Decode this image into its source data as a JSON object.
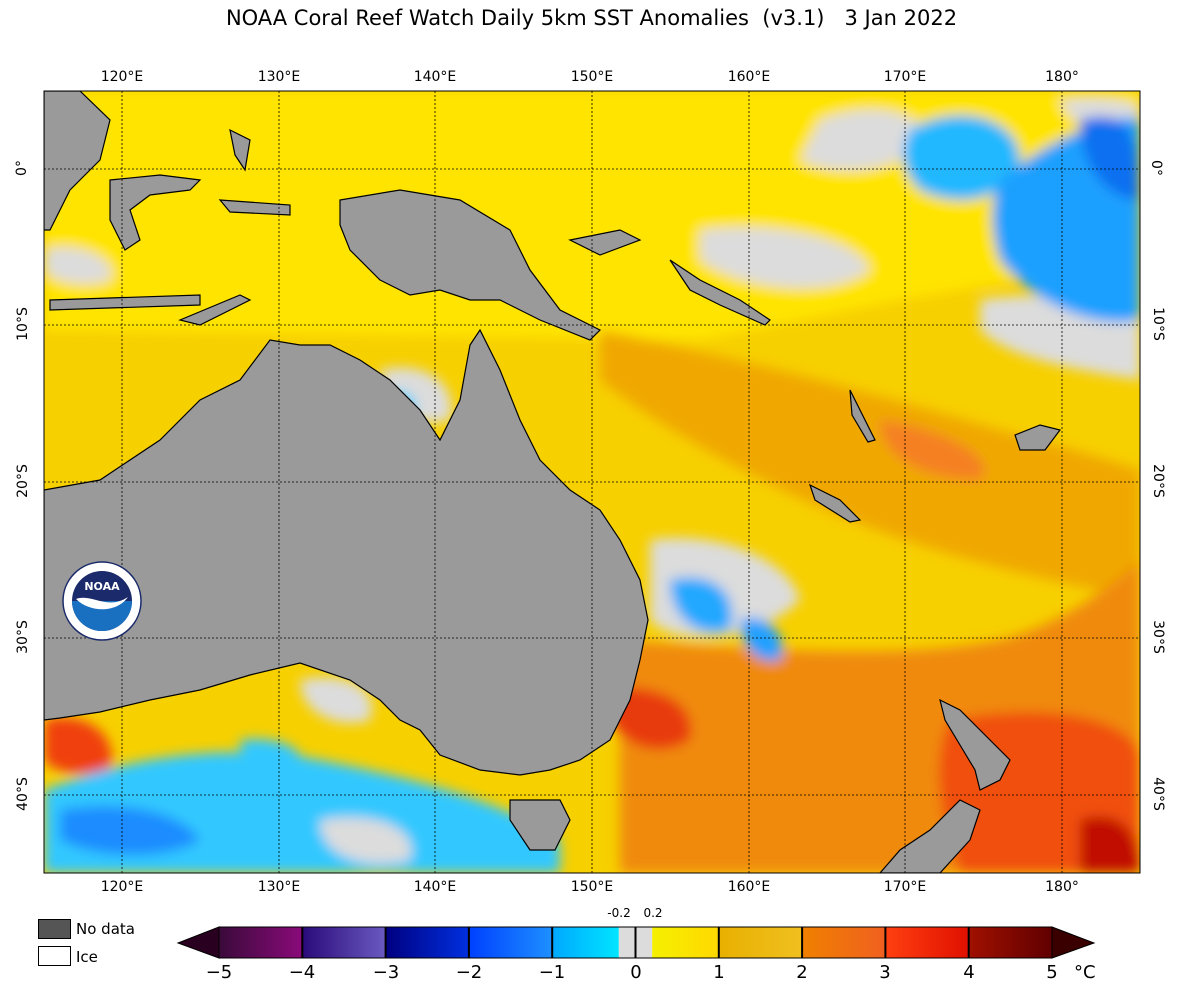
{
  "title": "NOAA Coral Reef Watch Daily 5km SST Anomalies  (v3.1)   3 Jan 2022",
  "map": {
    "lon_ticks": [
      "120°E",
      "130°E",
      "140°E",
      "150°E",
      "160°E",
      "170°E",
      "180°"
    ],
    "lat_ticks_left": [
      "0°",
      "10°S",
      "20°S",
      "30°S",
      "40°S"
    ],
    "lat_ticks_right": [
      "0°",
      "10°S",
      "20°S",
      "30°S",
      "40°S"
    ],
    "lon_range": [
      115,
      185
    ],
    "lat_range": [
      -45,
      5
    ],
    "gridlines": true,
    "colors": {
      "land": "#9a9a9a",
      "no_data_ocean": "#dcdcdc",
      "coastline": "#000000"
    }
  },
  "legend": {
    "items": [
      {
        "label": "No data",
        "color": "#555555"
      },
      {
        "label": "Ice",
        "color": "#ffffff"
      }
    ]
  },
  "colorbar": {
    "tick_labels": [
      "−5",
      "−4",
      "−3",
      "−2",
      "−1",
      "0",
      "1",
      "2",
      "3",
      "4",
      "5"
    ],
    "small_labels": [
      "-0.2",
      "0.2"
    ],
    "unit": "°C",
    "range": [
      -5,
      5
    ],
    "segments": [
      {
        "from": -5,
        "to": -4,
        "c1": "#3a0a3a",
        "c2": "#8a0a7a"
      },
      {
        "from": -4,
        "to": -3,
        "c1": "#2a0a7a",
        "c2": "#6a5ac0"
      },
      {
        "from": -3,
        "to": -2,
        "c1": "#000080",
        "c2": "#0030e0"
      },
      {
        "from": -2,
        "to": -1,
        "c1": "#0040ff",
        "c2": "#1e90ff"
      },
      {
        "from": -1,
        "to": -0.2,
        "c1": "#00a8ff",
        "c2": "#00e5ff"
      },
      {
        "from": -0.2,
        "to": 0.2,
        "c1": "#dcdcdc",
        "c2": "#dcdcdc"
      },
      {
        "from": 0.2,
        "to": 1,
        "c1": "#f5f000",
        "c2": "#ffd800"
      },
      {
        "from": 1,
        "to": 2,
        "c1": "#e8b000",
        "c2": "#f0c020"
      },
      {
        "from": 2,
        "to": 3,
        "c1": "#f08000",
        "c2": "#f06020"
      },
      {
        "from": 3,
        "to": 4,
        "c1": "#ff4010",
        "c2": "#e01000"
      },
      {
        "from": 4,
        "to": 5,
        "c1": "#a01000",
        "c2": "#600000"
      }
    ]
  },
  "logo": {
    "text": "NOAA"
  }
}
